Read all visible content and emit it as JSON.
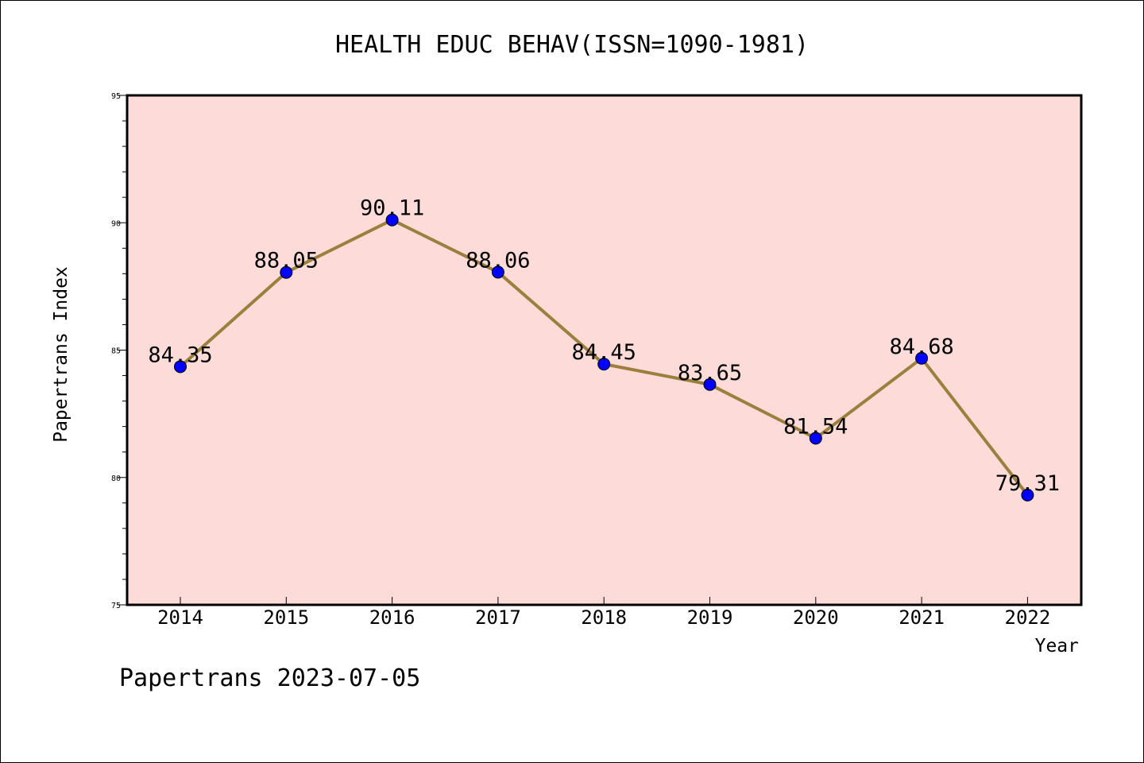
{
  "chart_data": {
    "type": "line",
    "title": "HEALTH EDUC BEHAV(ISSN=1090-1981)",
    "xlabel": "Year",
    "ylabel": "Papertrans Index",
    "categories": [
      "2014",
      "2015",
      "2016",
      "2017",
      "2018",
      "2019",
      "2020",
      "2021",
      "2022"
    ],
    "values": [
      84.35,
      88.05,
      90.11,
      88.06,
      84.45,
      83.65,
      81.54,
      84.68,
      79.31
    ],
    "data_labels": [
      "84.35",
      "88.05",
      "90.11",
      "88.06",
      "84.45",
      "83.65",
      "81.54",
      "84.68",
      "79.31"
    ],
    "ylim": [
      75,
      95
    ],
    "yticks": [
      75,
      80,
      85,
      90,
      95
    ],
    "ytick_labels": [
      "75",
      "80",
      "85",
      "90",
      "95"
    ],
    "grid": false,
    "plot_background": "#fddbd8",
    "line_color": "#9b7f3c",
    "marker_color": "#0000ff"
  },
  "footer": {
    "text": "Papertrans 2023-07-05"
  }
}
